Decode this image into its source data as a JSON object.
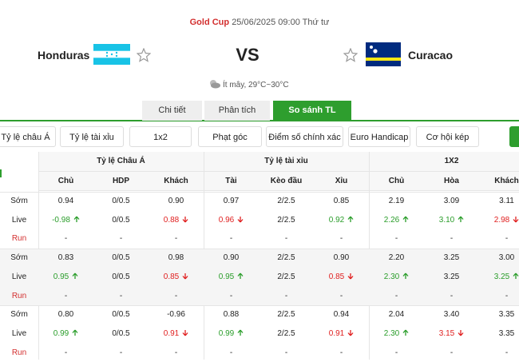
{
  "header": {
    "competition": "Gold Cup",
    "datetime": "25/06/2025 09:00 Thứ tư",
    "home": "Honduras",
    "vs": "VS",
    "away": "Curacao",
    "weather": "Ít mây, 29°C~30°C"
  },
  "tabs": {
    "items": [
      "Chi tiết",
      "Phân tích",
      "So sánh TL"
    ],
    "active": 2
  },
  "filters": [
    "Tỷ lệ châu Á",
    "Tỷ lệ tài xỉu",
    "1x2",
    "Phạt góc",
    "Điểm số chính xác",
    "Euro Handicap",
    "Cơ hội kép"
  ],
  "table": {
    "groups": [
      "Tỷ lệ Châu Á",
      "Tỷ lệ tài xỉu",
      "1X2"
    ],
    "columns": [
      "Chủ",
      "HDP",
      "Khách",
      "Tài",
      "Kèo đầu",
      "Xỉu",
      "Chủ",
      "Hòa",
      "Khách"
    ],
    "blocks": [
      {
        "rows": [
          {
            "label": "Sớm",
            "cells": [
              "0.94",
              "0/0.5",
              "0.90",
              "0.97",
              "2/2.5",
              "0.85",
              "2.19",
              "3.09",
              "3.11"
            ],
            "trends": [
              null,
              null,
              null,
              null,
              null,
              null,
              null,
              null,
              null
            ]
          },
          {
            "label": "Live",
            "cells": [
              "-0.98",
              "0/0.5",
              "0.88",
              "0.96",
              "2/2.5",
              "0.92",
              "2.26",
              "3.10",
              "2.98"
            ],
            "trends": [
              "up",
              null,
              "down",
              "down",
              null,
              "up",
              "up",
              "up",
              "down"
            ]
          },
          {
            "label": "Run",
            "cells": [
              "-",
              "-",
              "-",
              "-",
              "-",
              "-",
              "-",
              "-",
              "-"
            ],
            "trends": [
              null,
              null,
              null,
              null,
              null,
              null,
              null,
              null,
              null
            ]
          }
        ]
      },
      {
        "rows": [
          {
            "label": "Sớm",
            "cells": [
              "0.83",
              "0/0.5",
              "0.98",
              "0.90",
              "2/2.5",
              "0.90",
              "2.20",
              "3.25",
              "3.00"
            ],
            "trends": [
              null,
              null,
              null,
              null,
              null,
              null,
              null,
              null,
              null
            ]
          },
          {
            "label": "Live",
            "cells": [
              "0.95",
              "0/0.5",
              "0.85",
              "0.95",
              "2/2.5",
              "0.85",
              "2.30",
              "3.25",
              "3.25"
            ],
            "trends": [
              "up",
              null,
              "down",
              "up",
              null,
              "down",
              "up",
              null,
              "up"
            ]
          },
          {
            "label": "Run",
            "cells": [
              "-",
              "-",
              "-",
              "-",
              "-",
              "-",
              "-",
              "-",
              "-"
            ],
            "trends": [
              null,
              null,
              null,
              null,
              null,
              null,
              null,
              null,
              null
            ]
          }
        ]
      },
      {
        "rows": [
          {
            "label": "Sớm",
            "cells": [
              "0.80",
              "0/0.5",
              "-0.96",
              "0.88",
              "2/2.5",
              "0.94",
              "2.04",
              "3.40",
              "3.35"
            ],
            "trends": [
              null,
              null,
              null,
              null,
              null,
              null,
              null,
              null,
              null
            ]
          },
          {
            "label": "Live",
            "cells": [
              "0.99",
              "0/0.5",
              "0.91",
              "0.99",
              "2/2.5",
              "0.91",
              "2.30",
              "3.15",
              "3.35"
            ],
            "trends": [
              "up",
              null,
              "down",
              "up",
              null,
              "down",
              "up",
              "down",
              null
            ]
          },
          {
            "label": "Run",
            "cells": [
              "-",
              "-",
              "-",
              "-",
              "-",
              "-",
              "-",
              "-",
              "-"
            ],
            "trends": [
              null,
              null,
              null,
              null,
              null,
              null,
              null,
              null,
              null
            ]
          }
        ]
      }
    ]
  }
}
